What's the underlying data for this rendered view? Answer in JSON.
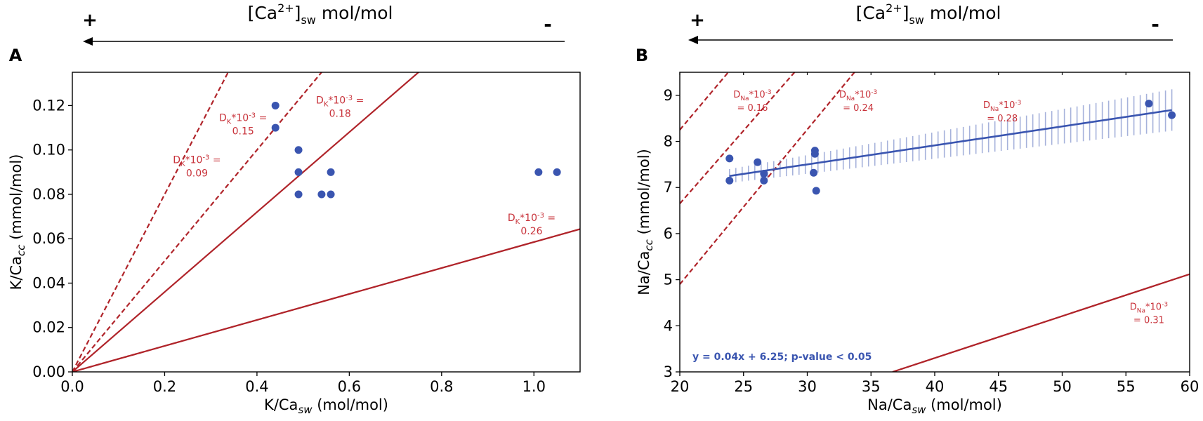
{
  "colors": {
    "points": "#3a55b0",
    "regression": "#3a55b0",
    "partition_lines": "#b0242a",
    "annotations": "#c8323a",
    "axis": "#000000"
  },
  "chart_data": [
    {
      "type": "scatter",
      "panel_label": "A",
      "header": {
        "plus": "+",
        "minus": "-",
        "label_main": "[Ca",
        "label_sup": "2+",
        "label_close": "]",
        "label_sub": "sw",
        "label_units": " mol/mol",
        "arrow_direction": "right-to-left"
      },
      "xlabel": {
        "main": "K/Ca",
        "sub": "sw",
        "rest": " (mol/mol)"
      },
      "ylabel": {
        "main": "K/Ca",
        "sub": "cc",
        "rest": " (mmol/mol)"
      },
      "xlim": [
        0,
        1.1
      ],
      "ylim": [
        0,
        0.135
      ],
      "xticks": [
        0.0,
        0.2,
        0.4,
        0.6,
        0.8,
        1.0
      ],
      "xtick_labels": [
        "0.0",
        "0.2",
        "0.4",
        "0.6",
        "0.8",
        "1.0"
      ],
      "yticks": [
        0.0,
        0.02,
        0.04,
        0.06,
        0.08,
        0.1,
        0.12
      ],
      "ytick_labels": [
        "0.00",
        "0.02",
        "0.04",
        "0.06",
        "0.08",
        "0.10",
        "0.12"
      ],
      "points": [
        {
          "x": 0.44,
          "y": 0.12
        },
        {
          "x": 0.44,
          "y": 0.11
        },
        {
          "x": 0.49,
          "y": 0.1
        },
        {
          "x": 0.49,
          "y": 0.09
        },
        {
          "x": 0.49,
          "y": 0.08
        },
        {
          "x": 0.54,
          "y": 0.08
        },
        {
          "x": 0.56,
          "y": 0.08
        },
        {
          "x": 0.56,
          "y": 0.09
        },
        {
          "x": 1.01,
          "y": 0.09
        },
        {
          "x": 1.05,
          "y": 0.09
        }
      ],
      "partition_lines": [
        {
          "slope": 0.4,
          "intercept": 0,
          "style": "dashed",
          "label_line1": "D",
          "label_sub": "K",
          "label_sup": "*10",
          "label_exp": "-3",
          "label_eq": " =",
          "label_line2": "0.09",
          "label_anchor": [
            0.27,
            0.094
          ]
        },
        {
          "slope": 0.25,
          "intercept": 0,
          "style": "dashed",
          "label_line1": "D",
          "label_sub": "K",
          "label_sup": "*10",
          "label_exp": "-3",
          "label_eq": " =",
          "label_line2": "0.15",
          "label_anchor": [
            0.37,
            0.113
          ]
        },
        {
          "slope": 0.18,
          "intercept": 0,
          "style": "solid",
          "label_line1": "D",
          "label_sub": "K",
          "label_sup": "*10",
          "label_exp": "-3",
          "label_eq": " =",
          "label_line2": "0.18",
          "label_anchor": [
            0.58,
            0.121
          ]
        },
        {
          "slope": 0.0585,
          "intercept": 0,
          "style": "dashed-solid",
          "label_line1": "D",
          "label_sub": "K",
          "label_sup": "*10",
          "label_exp": "-3",
          "label_eq": " =",
          "label_line2": "0.26",
          "label_anchor": [
            0.995,
            0.068
          ]
        }
      ]
    },
    {
      "type": "scatter",
      "panel_label": "B",
      "header": {
        "plus": "+",
        "minus": "-",
        "label_main": "[Ca",
        "label_sup": "2+",
        "label_close": "]",
        "label_sub": "sw",
        "label_units": " mol/mol",
        "arrow_direction": "right-to-left"
      },
      "xlabel": {
        "main": "Na/Ca",
        "sub": "sw",
        "rest": " (mol/mol)"
      },
      "ylabel": {
        "main": "Na/Ca",
        "sub": "cc",
        "rest": " (mmol/mol)"
      },
      "xlim": [
        20,
        60
      ],
      "ylim": [
        3,
        9.5
      ],
      "xticks": [
        20,
        25,
        30,
        35,
        40,
        45,
        50,
        55,
        60
      ],
      "xtick_labels": [
        "20",
        "25",
        "30",
        "35",
        "40",
        "45",
        "50",
        "55",
        "60"
      ],
      "yticks": [
        3,
        4,
        5,
        6,
        7,
        8,
        9
      ],
      "ytick_labels": [
        "3",
        "4",
        "5",
        "6",
        "7",
        "8",
        "9"
      ],
      "points": [
        {
          "x": 23.9,
          "y": 7.63
        },
        {
          "x": 23.9,
          "y": 7.15
        },
        {
          "x": 26.1,
          "y": 7.55
        },
        {
          "x": 26.6,
          "y": 7.3
        },
        {
          "x": 26.6,
          "y": 7.15
        },
        {
          "x": 30.6,
          "y": 7.8
        },
        {
          "x": 30.6,
          "y": 7.73
        },
        {
          "x": 30.5,
          "y": 7.32
        },
        {
          "x": 30.7,
          "y": 6.93
        },
        {
          "x": 56.8,
          "y": 8.82
        },
        {
          "x": 58.6,
          "y": 8.57
        }
      ],
      "regression": {
        "x_range": [
          23.9,
          58.6
        ],
        "y_start": 7.25,
        "y_end": 8.68,
        "ci_halfwidth_start": 0.15,
        "ci_halfwidth_end": 0.45,
        "equation": "y = 0.04x + 6.25; p-value < 0.05"
      },
      "partition_lines": [
        {
          "x0": 20,
          "y0": 6.65,
          "x1": 29.0,
          "y1": 9.5,
          "style": "dashed",
          "label_line1": "D",
          "label_sub": "Na",
          "label_sup": "*10",
          "label_exp": "-3",
          "label_eq": "",
          "label_line2": "= 0.16",
          "label_anchor": [
            25.7,
            8.95
          ]
        },
        {
          "x0": 20,
          "y0": 8.25,
          "x1": 23.8,
          "y1": 9.5,
          "style": "dashed",
          "label_line1": "",
          "label_sub": "",
          "label_sup": "",
          "label_exp": "",
          "label_eq": "",
          "label_line2": "",
          "label_anchor": [
            0,
            0
          ]
        },
        {
          "x0": 20,
          "y0": 4.9,
          "x1": 33.7,
          "y1": 9.5,
          "style": "dashed",
          "label_line1": "D",
          "label_sub": "Na",
          "label_sup": "*10",
          "label_exp": "-3",
          "label_eq": "",
          "label_line2": "= 0.24",
          "label_anchor": [
            34.0,
            8.95
          ]
        },
        {
          "x0": 36.7,
          "y0": 3.0,
          "x1": 60,
          "y1": 5.12,
          "style": "dashed-solid",
          "label_line1": "D",
          "label_sub": "Na",
          "label_sup": "*10",
          "label_exp": "-3",
          "label_eq": "",
          "label_line2": "= 0.31",
          "label_anchor": [
            56.8,
            4.35
          ]
        }
      ],
      "extra_label": {
        "label_line1": "D",
        "label_sub": "Na",
        "label_sup": "*10",
        "label_exp": "-3",
        "label_line2": "= 0.28",
        "label_anchor": [
          45.3,
          8.72
        ]
      }
    }
  ]
}
